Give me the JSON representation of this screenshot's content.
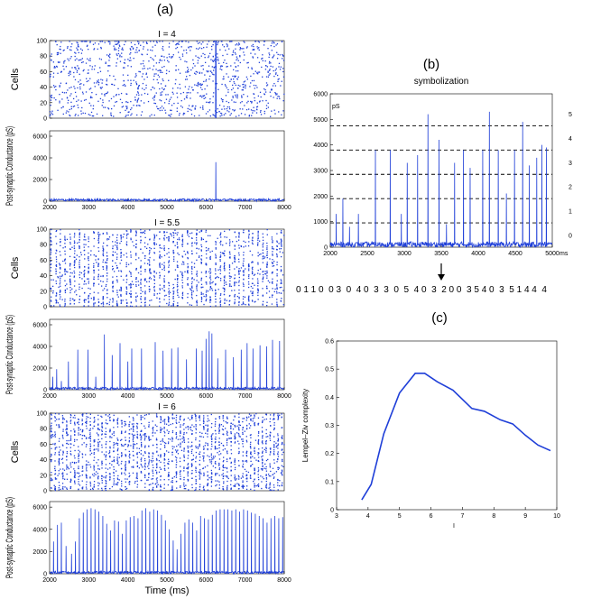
{
  "panels": {
    "a": "(a)",
    "b": "(b)",
    "c": "(c)"
  },
  "colors": {
    "series": "#1f3fd8",
    "dashed": "#000000"
  },
  "chart_data": [
    {
      "id": "raster-I4",
      "type": "scatter",
      "title": "I = 4",
      "ylabel": "Cells",
      "xlim": [
        2000,
        8000
      ],
      "ylim": [
        0,
        100
      ],
      "yticks": [
        0,
        20,
        40,
        60,
        80,
        100
      ],
      "pattern": "sparse",
      "sync_events_x": [
        6250
      ]
    },
    {
      "id": "cond-I4",
      "type": "line",
      "ylabel": "Post-synaptic Conductance (pS)",
      "xlim": [
        2000,
        8000
      ],
      "ylim": [
        0,
        6500
      ],
      "xticks": [
        2000,
        3000,
        4000,
        5000,
        6000,
        7000,
        8000
      ],
      "yticks": [
        0,
        2000,
        4000,
        6000
      ],
      "peaks": [
        {
          "x": 6250,
          "y": 3600
        }
      ]
    },
    {
      "id": "raster-I55",
      "type": "scatter",
      "title": "I = 5.5",
      "ylabel": "Cells",
      "xlim": [
        2000,
        8000
      ],
      "ylim": [
        0,
        100
      ],
      "yticks": [
        0,
        20,
        40,
        60,
        80,
        100
      ],
      "pattern": "irregular-bursts"
    },
    {
      "id": "cond-I55",
      "type": "line",
      "ylabel": "Post-synaptic Conductance (pS)",
      "xlim": [
        2000,
        8000
      ],
      "ylim": [
        0,
        6500
      ],
      "xticks": [
        2000,
        3000,
        4000,
        5000,
        6000,
        7000,
        8000
      ],
      "yticks": [
        0,
        2000,
        4000,
        6000
      ],
      "peaks": [
        {
          "x": 2080,
          "y": 1200
        },
        {
          "x": 2180,
          "y": 1900
        },
        {
          "x": 2300,
          "y": 800
        },
        {
          "x": 2480,
          "y": 2600
        },
        {
          "x": 2720,
          "y": 3700
        },
        {
          "x": 2980,
          "y": 3700
        },
        {
          "x": 3180,
          "y": 1200
        },
        {
          "x": 3400,
          "y": 5100
        },
        {
          "x": 3600,
          "y": 3200
        },
        {
          "x": 3800,
          "y": 4300
        },
        {
          "x": 4000,
          "y": 2600
        },
        {
          "x": 4100,
          "y": 3800
        },
        {
          "x": 4350,
          "y": 3800
        },
        {
          "x": 4700,
          "y": 4400
        },
        {
          "x": 4900,
          "y": 3600
        },
        {
          "x": 5120,
          "y": 3800
        },
        {
          "x": 5280,
          "y": 3900
        },
        {
          "x": 5500,
          "y": 2800
        },
        {
          "x": 5750,
          "y": 3800
        },
        {
          "x": 5900,
          "y": 3600
        },
        {
          "x": 6000,
          "y": 4700
        },
        {
          "x": 6080,
          "y": 5400
        },
        {
          "x": 6150,
          "y": 5200
        },
        {
          "x": 6300,
          "y": 2900
        },
        {
          "x": 6500,
          "y": 3700
        },
        {
          "x": 6700,
          "y": 3000
        },
        {
          "x": 6900,
          "y": 3700
        },
        {
          "x": 7050,
          "y": 4300
        },
        {
          "x": 7200,
          "y": 3800
        },
        {
          "x": 7380,
          "y": 4100
        },
        {
          "x": 7550,
          "y": 4000
        },
        {
          "x": 7700,
          "y": 4600
        },
        {
          "x": 7880,
          "y": 4500
        }
      ]
    },
    {
      "id": "raster-I6",
      "type": "scatter",
      "title": "I = 6",
      "ylabel": "Cells",
      "xlim": [
        2000,
        8000
      ],
      "ylim": [
        0,
        100
      ],
      "yticks": [
        0,
        20,
        40,
        60,
        80,
        100
      ],
      "pattern": "regular-bursts"
    },
    {
      "id": "cond-I6",
      "type": "line",
      "ylabel": "Post-synaptic Conductance (pS)",
      "xlabel": "Time (ms)",
      "xlim": [
        2000,
        8000
      ],
      "ylim": [
        0,
        6500
      ],
      "xticks": [
        2000,
        3000,
        4000,
        5000,
        6000,
        7000,
        8000
      ],
      "yticks": [
        0,
        2000,
        4000,
        6000
      ],
      "peaks": [
        {
          "x": 2100,
          "y": 2900
        },
        {
          "x": 2200,
          "y": 4400
        },
        {
          "x": 2300,
          "y": 4600
        },
        {
          "x": 2420,
          "y": 2500
        },
        {
          "x": 2560,
          "y": 1800
        },
        {
          "x": 2660,
          "y": 2900
        },
        {
          "x": 2760,
          "y": 5000
        },
        {
          "x": 2860,
          "y": 5500
        },
        {
          "x": 2960,
          "y": 5800
        },
        {
          "x": 3060,
          "y": 5900
        },
        {
          "x": 3160,
          "y": 5800
        },
        {
          "x": 3260,
          "y": 5600
        },
        {
          "x": 3360,
          "y": 5200
        },
        {
          "x": 3460,
          "y": 4500
        },
        {
          "x": 3560,
          "y": 3900
        },
        {
          "x": 3660,
          "y": 4800
        },
        {
          "x": 3760,
          "y": 4700
        },
        {
          "x": 3860,
          "y": 3600
        },
        {
          "x": 3960,
          "y": 4800
        },
        {
          "x": 4060,
          "y": 5100
        },
        {
          "x": 4160,
          "y": 5200
        },
        {
          "x": 4260,
          "y": 5000
        },
        {
          "x": 4360,
          "y": 5700
        },
        {
          "x": 4460,
          "y": 5900
        },
        {
          "x": 4560,
          "y": 5600
        },
        {
          "x": 4660,
          "y": 5800
        },
        {
          "x": 4760,
          "y": 5700
        },
        {
          "x": 4860,
          "y": 5300
        },
        {
          "x": 4960,
          "y": 4800
        },
        {
          "x": 5060,
          "y": 4000
        },
        {
          "x": 5160,
          "y": 3000
        },
        {
          "x": 5260,
          "y": 2200
        },
        {
          "x": 5360,
          "y": 3600
        },
        {
          "x": 5460,
          "y": 4600
        },
        {
          "x": 5560,
          "y": 4900
        },
        {
          "x": 5660,
          "y": 4600
        },
        {
          "x": 5760,
          "y": 3900
        },
        {
          "x": 5860,
          "y": 5200
        },
        {
          "x": 5960,
          "y": 5000
        },
        {
          "x": 6060,
          "y": 4900
        },
        {
          "x": 6160,
          "y": 5300
        },
        {
          "x": 6260,
          "y": 5700
        },
        {
          "x": 6360,
          "y": 5800
        },
        {
          "x": 6460,
          "y": 5800
        },
        {
          "x": 6560,
          "y": 5800
        },
        {
          "x": 6660,
          "y": 5700
        },
        {
          "x": 6760,
          "y": 5800
        },
        {
          "x": 6860,
          "y": 5600
        },
        {
          "x": 6960,
          "y": 5800
        },
        {
          "x": 7060,
          "y": 5700
        },
        {
          "x": 7160,
          "y": 5500
        },
        {
          "x": 7260,
          "y": 5400
        },
        {
          "x": 7360,
          "y": 5200
        },
        {
          "x": 7460,
          "y": 5000
        },
        {
          "x": 7560,
          "y": 4600
        },
        {
          "x": 7660,
          "y": 5000
        },
        {
          "x": 7760,
          "y": 5200
        },
        {
          "x": 7860,
          "y": 5000
        },
        {
          "x": 7960,
          "y": 5100
        }
      ]
    },
    {
      "id": "symbolization",
      "type": "line",
      "title": "symbolization",
      "ylabel": "pS",
      "xunit": "ms",
      "xlim": [
        2000,
        5000
      ],
      "ylim": [
        0,
        6000
      ],
      "xticks": [
        2000,
        2500,
        3000,
        3500,
        4000,
        4500,
        5000
      ],
      "yticks": [
        0,
        1000,
        2000,
        3000,
        4000,
        5000,
        6000
      ],
      "thresholds": [
        950,
        1900,
        2850,
        3800,
        4750
      ],
      "levels": [
        "0",
        "1",
        "2",
        "3",
        "4",
        "5"
      ],
      "peaks": [
        {
          "x": 2080,
          "y": 1300
        },
        {
          "x": 2170,
          "y": 1900
        },
        {
          "x": 2260,
          "y": 800
        },
        {
          "x": 2380,
          "y": 1300
        },
        {
          "x": 2610,
          "y": 3800
        },
        {
          "x": 2810,
          "y": 3800
        },
        {
          "x": 2960,
          "y": 1300
        },
        {
          "x": 3040,
          "y": 3300
        },
        {
          "x": 3180,
          "y": 3600
        },
        {
          "x": 3320,
          "y": 5200
        },
        {
          "x": 3470,
          "y": 4200
        },
        {
          "x": 3570,
          "y": 900
        },
        {
          "x": 3680,
          "y": 3300
        },
        {
          "x": 3800,
          "y": 3800
        },
        {
          "x": 3890,
          "y": 3100
        },
        {
          "x": 4060,
          "y": 3800
        },
        {
          "x": 4150,
          "y": 5300
        },
        {
          "x": 4270,
          "y": 3800
        },
        {
          "x": 4380,
          "y": 2100
        },
        {
          "x": 4490,
          "y": 3800
        },
        {
          "x": 4600,
          "y": 4900
        },
        {
          "x": 4690,
          "y": 3200
        },
        {
          "x": 4790,
          "y": 3500
        },
        {
          "x": 4860,
          "y": 4000
        },
        {
          "x": 4920,
          "y": 3900
        }
      ],
      "symbol_sequence": "0 1 1 0  0 3  0  4 0  3  3  0  5  4 0  3  2 0 0  3 5 4 0  3  5 1 4 4  4"
    },
    {
      "id": "lempel-ziv",
      "type": "line",
      "ylabel": "Lempel–Ziv complexity",
      "xlabel": "I",
      "xlim": [
        3,
        10
      ],
      "ylim": [
        0,
        0.6
      ],
      "xticks": [
        3,
        4,
        5,
        6,
        7,
        8,
        9,
        10
      ],
      "yticks": [
        0,
        0.1,
        0.2,
        0.3,
        0.4,
        0.5,
        0.6
      ],
      "x": [
        3.8,
        4.1,
        4.5,
        5.0,
        5.5,
        5.8,
        6.2,
        6.7,
        7.3,
        7.7,
        8.2,
        8.6,
        9.0,
        9.4,
        9.8
      ],
      "y": [
        0.035,
        0.09,
        0.27,
        0.415,
        0.485,
        0.485,
        0.455,
        0.425,
        0.36,
        0.35,
        0.32,
        0.305,
        0.265,
        0.23,
        0.21
      ]
    }
  ]
}
